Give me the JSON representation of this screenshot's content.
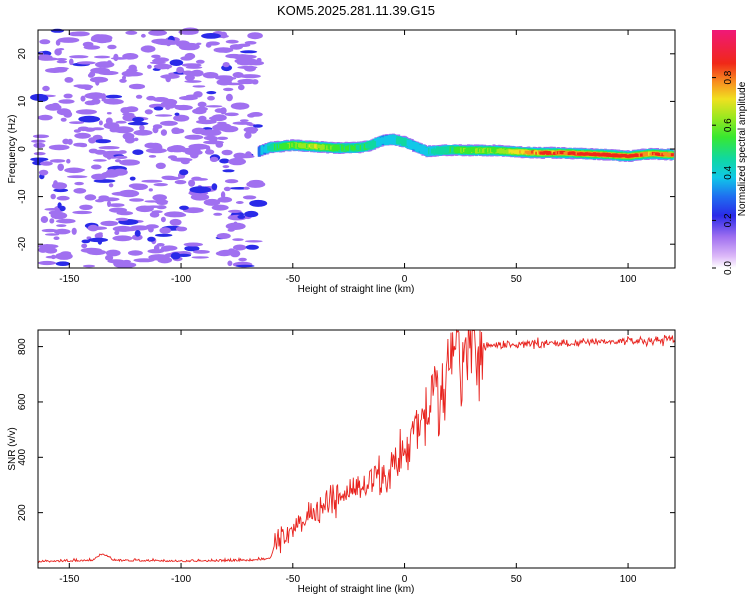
{
  "title": "KOM5.2025.281.11.39.G15",
  "chart_data": [
    {
      "type": "heatmap",
      "xlabel": "Height of straight line (km)",
      "ylabel": "Frequency (Hz)",
      "xlim": [
        -164,
        121
      ],
      "ylim": [
        -25,
        25
      ],
      "xticks": [
        -150,
        -100,
        -50,
        0,
        50,
        100
      ],
      "yticks": [
        -20,
        -10,
        0,
        10,
        20
      ],
      "colorbar": {
        "label": "Normalized spectral amplitude",
        "range": [
          0,
          1
        ],
        "ticks": [
          0.0,
          0.2,
          0.4,
          0.6,
          0.8
        ]
      },
      "ridge": {
        "description": "signal trace starting near -65 km",
        "x": [
          -65,
          -60,
          -50,
          -40,
          -30,
          -20,
          -15,
          -10,
          -5,
          0,
          5,
          10,
          20,
          30,
          40,
          50,
          60,
          70,
          80,
          90,
          100,
          110,
          120
        ],
        "frequency": [
          -0.5,
          0.3,
          0.8,
          0.5,
          0.2,
          0.3,
          0.8,
          1.8,
          2.0,
          1.5,
          0.5,
          -0.5,
          -0.2,
          -0.3,
          -0.3,
          -0.6,
          -0.8,
          -0.8,
          -1.0,
          -1.2,
          -1.5,
          -1.0,
          -1.2
        ],
        "amplitude": [
          0.25,
          0.4,
          0.55,
          0.6,
          0.5,
          0.45,
          0.45,
          0.3,
          0.35,
          0.4,
          0.3,
          0.35,
          0.45,
          0.55,
          0.55,
          0.65,
          0.75,
          0.8,
          0.85,
          0.85,
          0.9,
          0.75,
          0.8
        ]
      },
      "noise_region": [
        -164,
        -65
      ]
    },
    {
      "type": "line",
      "xlabel": "Height of straight line (km)",
      "ylabel": "SNR (v/v)",
      "xlim": [
        -164,
        121
      ],
      "ylim": [
        0,
        860
      ],
      "xticks": [
        -150,
        -100,
        -50,
        0,
        50,
        100
      ],
      "yticks": [
        200,
        400,
        600,
        800
      ],
      "series": [
        {
          "name": "SNR",
          "color": "#e8231e",
          "x": [
            -164,
            -140,
            -135,
            -130,
            -100,
            -70,
            -60,
            -57,
            -50,
            -40,
            -30,
            -20,
            -10,
            0,
            5,
            10,
            15,
            20,
            25,
            30,
            35,
            40,
            60,
            80,
            100,
            121
          ],
          "y": [
            20,
            25,
            50,
            25,
            22,
            25,
            30,
            110,
            150,
            200,
            250,
            290,
            330,
            420,
            490,
            560,
            640,
            700,
            750,
            790,
            800,
            805,
            810,
            815,
            820,
            825
          ]
        }
      ]
    }
  ]
}
